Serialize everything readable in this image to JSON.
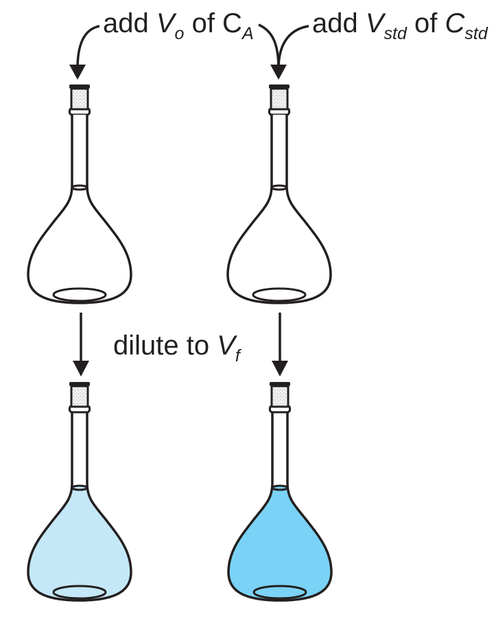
{
  "labels": {
    "left_add": {
      "prefix": "add ",
      "var": "V",
      "var_sub": "o",
      "mid": " of C",
      "tail_sub": "A"
    },
    "right_add": {
      "prefix": "add ",
      "var": "V",
      "var_sub": "std",
      "mid": " of ",
      "tail": "C",
      "tail_sub": "std"
    },
    "dilute": {
      "prefix": "dilute to ",
      "var": "V",
      "var_sub": "f"
    }
  },
  "colors": {
    "outline": "#231f20",
    "stopper_fill": "#f2f2f2",
    "stopper_speckle": "#8a8a8a",
    "solution_light": "#c4e8f8",
    "solution_dark": "#7ad3f6"
  }
}
